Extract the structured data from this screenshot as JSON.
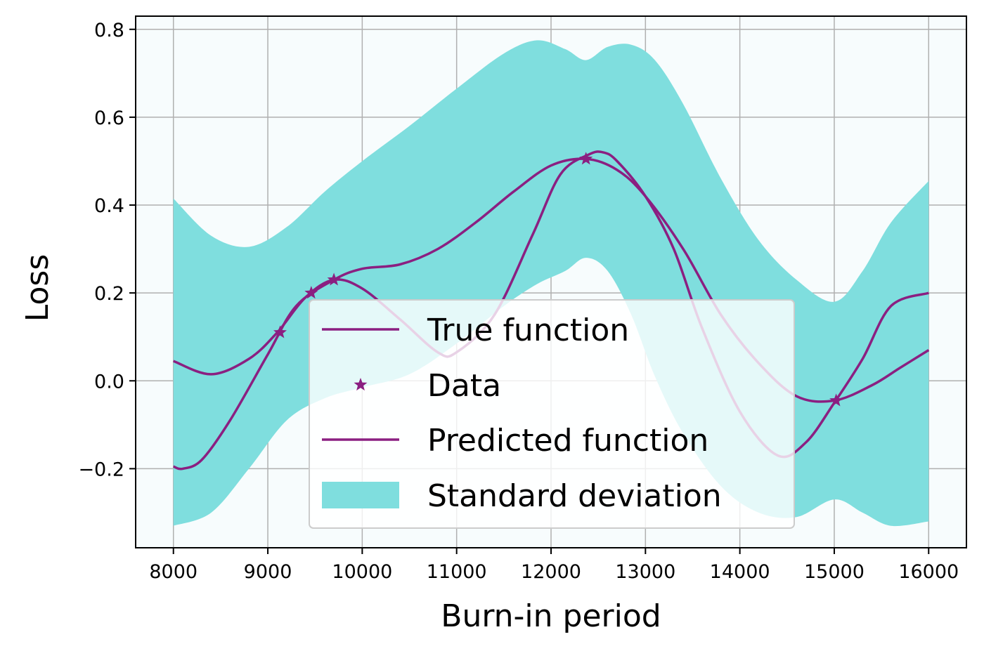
{
  "chart_data": {
    "type": "line",
    "title": "",
    "xlabel": "Burn-in period",
    "ylabel": "Loss",
    "xlim": [
      7600,
      16400
    ],
    "ylim": [
      -0.38,
      0.83
    ],
    "x_ticks": [
      8000,
      9000,
      10000,
      11000,
      12000,
      13000,
      14000,
      15000,
      16000
    ],
    "x_tick_labels": [
      "8000",
      "9000",
      "10000",
      "11000",
      "12000",
      "13000",
      "14000",
      "15000",
      "16000"
    ],
    "y_ticks": [
      -0.2,
      0.0,
      0.2,
      0.4,
      0.6,
      0.8
    ],
    "y_tick_labels": [
      "−0.2",
      "0.0",
      "0.2",
      "0.4",
      "0.6",
      "0.8"
    ],
    "grid": true,
    "legend_position": "lower-center",
    "plot_background": "#f7fcfd",
    "colors": {
      "line": "#8b1f81",
      "band": "#7fdede",
      "grid": "#b0b0b0",
      "legend_edge": "#cccccc"
    },
    "legend": [
      {
        "label": "True function",
        "kind": "line"
      },
      {
        "label": "Data",
        "kind": "marker"
      },
      {
        "label": "Predicted function",
        "kind": "line"
      },
      {
        "label": "Standard deviation",
        "kind": "patch"
      }
    ],
    "series": [
      {
        "name": "True function",
        "kind": "line",
        "x": [
          8000,
          8400,
          8800,
          9100,
          9400,
          9700,
          10000,
          10400,
          10800,
          11000,
          11400,
          11800,
          12100,
          12400,
          12550,
          12700,
          13000,
          13300,
          13600,
          14000,
          14400,
          14700,
          15000,
          15300,
          15600,
          16000
        ],
        "y": [
          0.045,
          0.015,
          0.05,
          0.11,
          0.19,
          0.23,
          0.21,
          0.14,
          0.065,
          0.065,
          0.15,
          0.33,
          0.47,
          0.515,
          0.52,
          0.5,
          0.42,
          0.3,
          0.12,
          -0.07,
          -0.17,
          -0.14,
          -0.05,
          0.05,
          0.17,
          0.2
        ]
      },
      {
        "name": "Data",
        "kind": "scatter",
        "x": [
          9130,
          9460,
          9700,
          12370,
          15020
        ],
        "y": [
          0.11,
          0.2,
          0.23,
          0.505,
          -0.045
        ]
      },
      {
        "name": "Predicted function",
        "kind": "line",
        "x": [
          8000,
          8100,
          8300,
          8600,
          9000,
          9300,
          9700,
          10000,
          10400,
          10800,
          11200,
          11600,
          12000,
          12370,
          12700,
          13000,
          13400,
          13800,
          14200,
          14600,
          15000,
          15400,
          15700,
          16000
        ],
        "y": [
          -0.195,
          -0.2,
          -0.18,
          -0.09,
          0.06,
          0.17,
          0.23,
          0.255,
          0.265,
          0.3,
          0.36,
          0.43,
          0.49,
          0.505,
          0.48,
          0.42,
          0.3,
          0.15,
          0.04,
          -0.035,
          -0.045,
          -0.01,
          0.03,
          0.07
        ]
      },
      {
        "name": "Standard deviation",
        "kind": "band",
        "x": [
          8000,
          8400,
          8800,
          9200,
          9600,
          10000,
          10500,
          11000,
          11500,
          11850,
          12150,
          12370,
          12600,
          12850,
          13100,
          13400,
          13800,
          14200,
          14600,
          15000,
          15300,
          15600,
          16000
        ],
        "upper": [
          0.415,
          0.33,
          0.305,
          0.35,
          0.43,
          0.5,
          0.58,
          0.665,
          0.745,
          0.775,
          0.755,
          0.73,
          0.76,
          0.765,
          0.73,
          0.63,
          0.46,
          0.32,
          0.23,
          0.18,
          0.25,
          0.36,
          0.455
        ],
        "lower": [
          -0.33,
          -0.3,
          -0.2,
          -0.09,
          -0.04,
          -0.015,
          0.015,
          0.085,
          0.17,
          0.22,
          0.25,
          0.28,
          0.25,
          0.15,
          0.01,
          -0.12,
          -0.24,
          -0.3,
          -0.31,
          -0.27,
          -0.3,
          -0.33,
          -0.32
        ]
      }
    ]
  }
}
